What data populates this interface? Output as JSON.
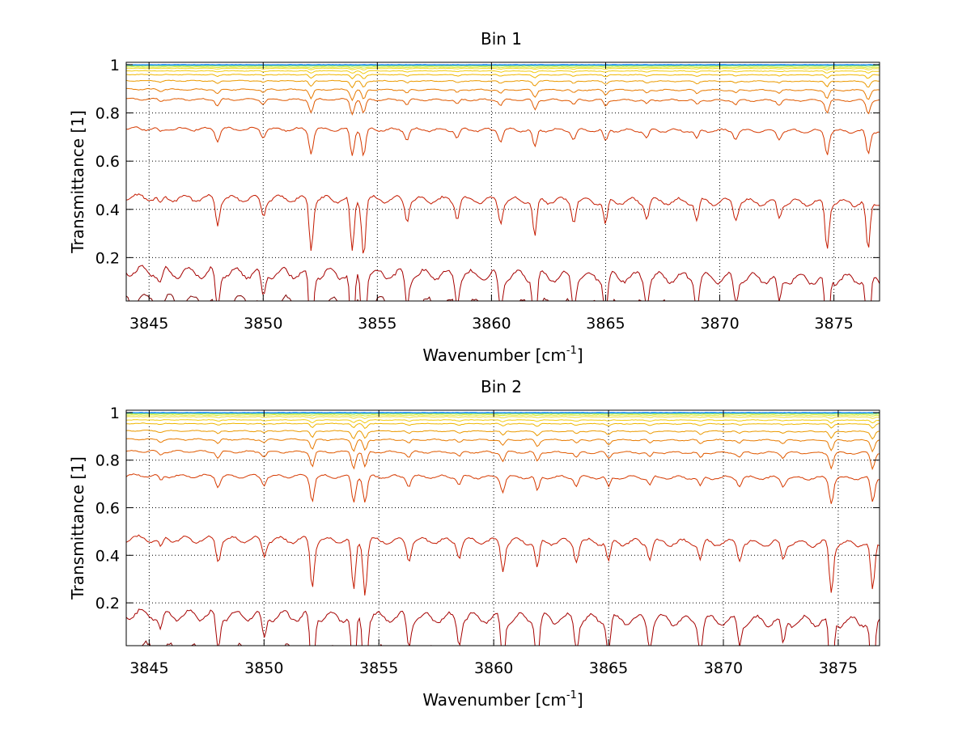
{
  "chart_data": [
    {
      "type": "line",
      "title": "Bin 1",
      "xlabel_base": "Wavenumber [cm",
      "xlabel_sup": "-1",
      "xlabel_end": "]",
      "ylabel": "Transmittance [1]",
      "xlim": [
        3844,
        3877
      ],
      "ylim": [
        0.02,
        1.01
      ],
      "xticks": [
        3845,
        3850,
        3855,
        3860,
        3865,
        3870,
        3875
      ],
      "yticks": [
        0.2,
        0.4,
        0.6,
        0.8,
        1
      ],
      "ytick_labels": [
        "0.2",
        "0.4",
        "0.6",
        "0.8",
        "1"
      ],
      "grid": true,
      "series_levels": [
        0.045,
        0.16,
        0.46,
        0.74,
        0.86,
        0.9,
        0.935,
        0.96,
        0.975,
        0.985,
        0.99,
        0.995,
        0.998,
        0.999,
        0.9995,
        1.0
      ],
      "series_colors": [
        "#800000",
        "#a50000",
        "#c41a00",
        "#d63a00",
        "#e05a00",
        "#e87a00",
        "#eb9a00",
        "#efb600",
        "#f3cc10",
        "#efdc30",
        "#d9e830",
        "#a8e850",
        "#6ee0a0",
        "#40d0d0",
        "#20b0f0",
        "#0070ff"
      ],
      "dips": [
        {
          "x": 3845.5,
          "depth": 0.15
        },
        {
          "x": 3848.0,
          "depth": 0.45
        },
        {
          "x": 3850.0,
          "depth": 0.3
        },
        {
          "x": 3852.1,
          "depth": 0.9
        },
        {
          "x": 3853.9,
          "depth": 1.0
        },
        {
          "x": 3854.4,
          "depth": 1.0
        },
        {
          "x": 3856.3,
          "depth": 0.35
        },
        {
          "x": 3858.5,
          "depth": 0.3
        },
        {
          "x": 3860.4,
          "depth": 0.4
        },
        {
          "x": 3861.9,
          "depth": 0.7
        },
        {
          "x": 3863.6,
          "depth": 0.35
        },
        {
          "x": 3865.0,
          "depth": 0.45
        },
        {
          "x": 3866.8,
          "depth": 0.3
        },
        {
          "x": 3869.0,
          "depth": 0.35
        },
        {
          "x": 3870.7,
          "depth": 0.3
        },
        {
          "x": 3872.6,
          "depth": 0.3
        },
        {
          "x": 3874.7,
          "depth": 0.85
        },
        {
          "x": 3876.5,
          "depth": 0.9
        }
      ]
    },
    {
      "type": "line",
      "title": "Bin 2",
      "xlabel_base": "Wavenumber [cm",
      "xlabel_sup": "-1",
      "xlabel_end": "]",
      "ylabel": "Transmittance [1]",
      "xlim": [
        3844,
        3876.8
      ],
      "ylim": [
        0.02,
        1.01
      ],
      "xticks": [
        3845,
        3850,
        3855,
        3860,
        3865,
        3870,
        3875
      ],
      "yticks": [
        0.2,
        0.4,
        0.6,
        0.8,
        1
      ],
      "ytick_labels": [
        "0.2",
        "0.4",
        "0.6",
        "0.8",
        "1"
      ],
      "grid": true,
      "series_levels": [
        0.03,
        0.17,
        0.48,
        0.74,
        0.84,
        0.89,
        0.925,
        0.955,
        0.97,
        0.983,
        0.99,
        0.995,
        0.998,
        0.999,
        0.9995,
        1.0
      ],
      "series_colors": [
        "#800000",
        "#a50000",
        "#c41a00",
        "#d63a00",
        "#e05a00",
        "#e87a00",
        "#eb9a00",
        "#efb600",
        "#f3cc10",
        "#efdc30",
        "#d9e830",
        "#a8e850",
        "#6ee0a0",
        "#40d0d0",
        "#20b0f0",
        "#0070ff"
      ],
      "dips": [
        {
          "x": 3845.5,
          "depth": 0.2
        },
        {
          "x": 3848.0,
          "depth": 0.4
        },
        {
          "x": 3850.0,
          "depth": 0.3
        },
        {
          "x": 3852.1,
          "depth": 0.9
        },
        {
          "x": 3853.9,
          "depth": 1.0
        },
        {
          "x": 3854.4,
          "depth": 1.0
        },
        {
          "x": 3856.3,
          "depth": 0.35
        },
        {
          "x": 3858.5,
          "depth": 0.3
        },
        {
          "x": 3860.4,
          "depth": 0.55
        },
        {
          "x": 3861.9,
          "depth": 0.55
        },
        {
          "x": 3863.6,
          "depth": 0.35
        },
        {
          "x": 3865.0,
          "depth": 0.4
        },
        {
          "x": 3866.8,
          "depth": 0.3
        },
        {
          "x": 3869.0,
          "depth": 0.35
        },
        {
          "x": 3870.7,
          "depth": 0.3
        },
        {
          "x": 3872.6,
          "depth": 0.3
        },
        {
          "x": 3874.7,
          "depth": 0.95
        },
        {
          "x": 3876.5,
          "depth": 0.95
        }
      ]
    }
  ]
}
